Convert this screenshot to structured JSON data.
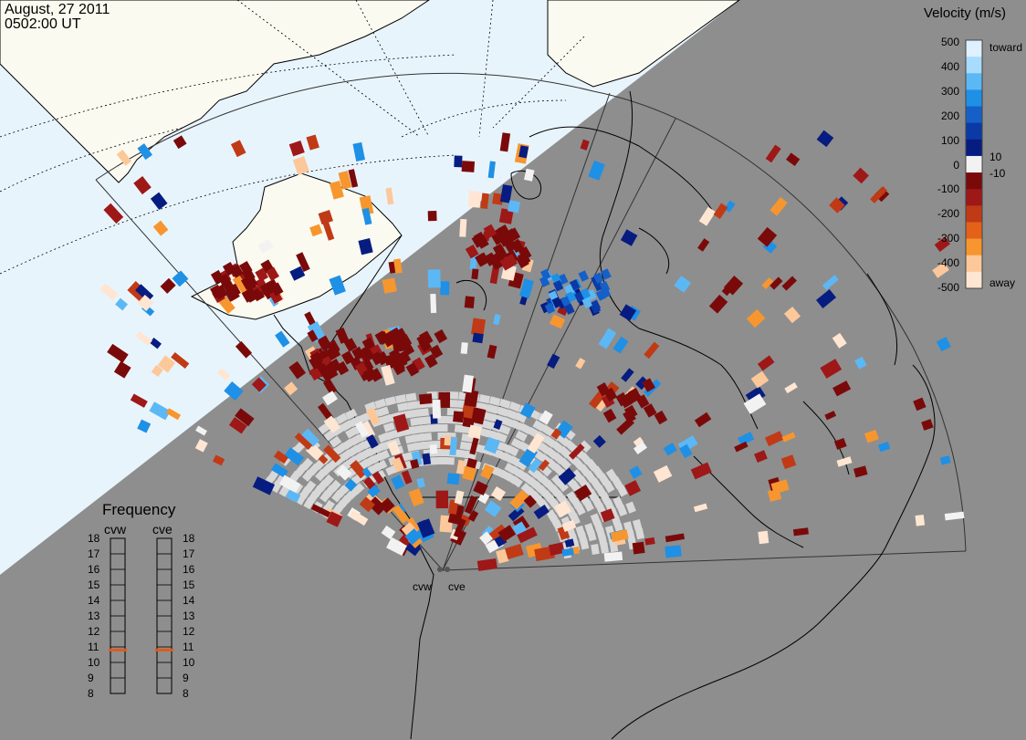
{
  "header": {
    "date": "August, 27 2011",
    "time": "0502:00 UT"
  },
  "colorbar": {
    "title": "Velocity (m/s)",
    "ticks": [
      "500",
      "400",
      "300",
      "200",
      "100",
      "0",
      "-100",
      "-200",
      "-300",
      "-400",
      "-500"
    ],
    "small_ticks": [
      "10",
      "-10"
    ],
    "end_labels": {
      "top": "toward",
      "bottom": "away"
    },
    "colors": [
      "#dff0ff",
      "#a8dcff",
      "#5cb8f5",
      "#1e90e6",
      "#1560c8",
      "#0b3aa6",
      "#061c80",
      "#f2f2f2",
      "#7a0a0a",
      "#9e1818",
      "#c03a16",
      "#e4611a",
      "#f7962e",
      "#fcc89a",
      "#ffe6d2"
    ]
  },
  "frequency_panel": {
    "title": "Frequency",
    "radars": [
      "cvw",
      "cve"
    ],
    "scale": [
      "18",
      "17",
      "16",
      "15",
      "14",
      "13",
      "12",
      "11",
      "10",
      "9",
      "8"
    ],
    "cvw_value": 10.8,
    "cve_value": 10.8,
    "marker_color": "#e05a1a"
  },
  "radar_labels": [
    "cvw",
    "cve"
  ],
  "map_colors": {
    "night": "#8e8e8e",
    "day_ocean": "#e8f4fc",
    "day_land": "#fafaf0",
    "ground_scatter": "#d8d8d8"
  }
}
